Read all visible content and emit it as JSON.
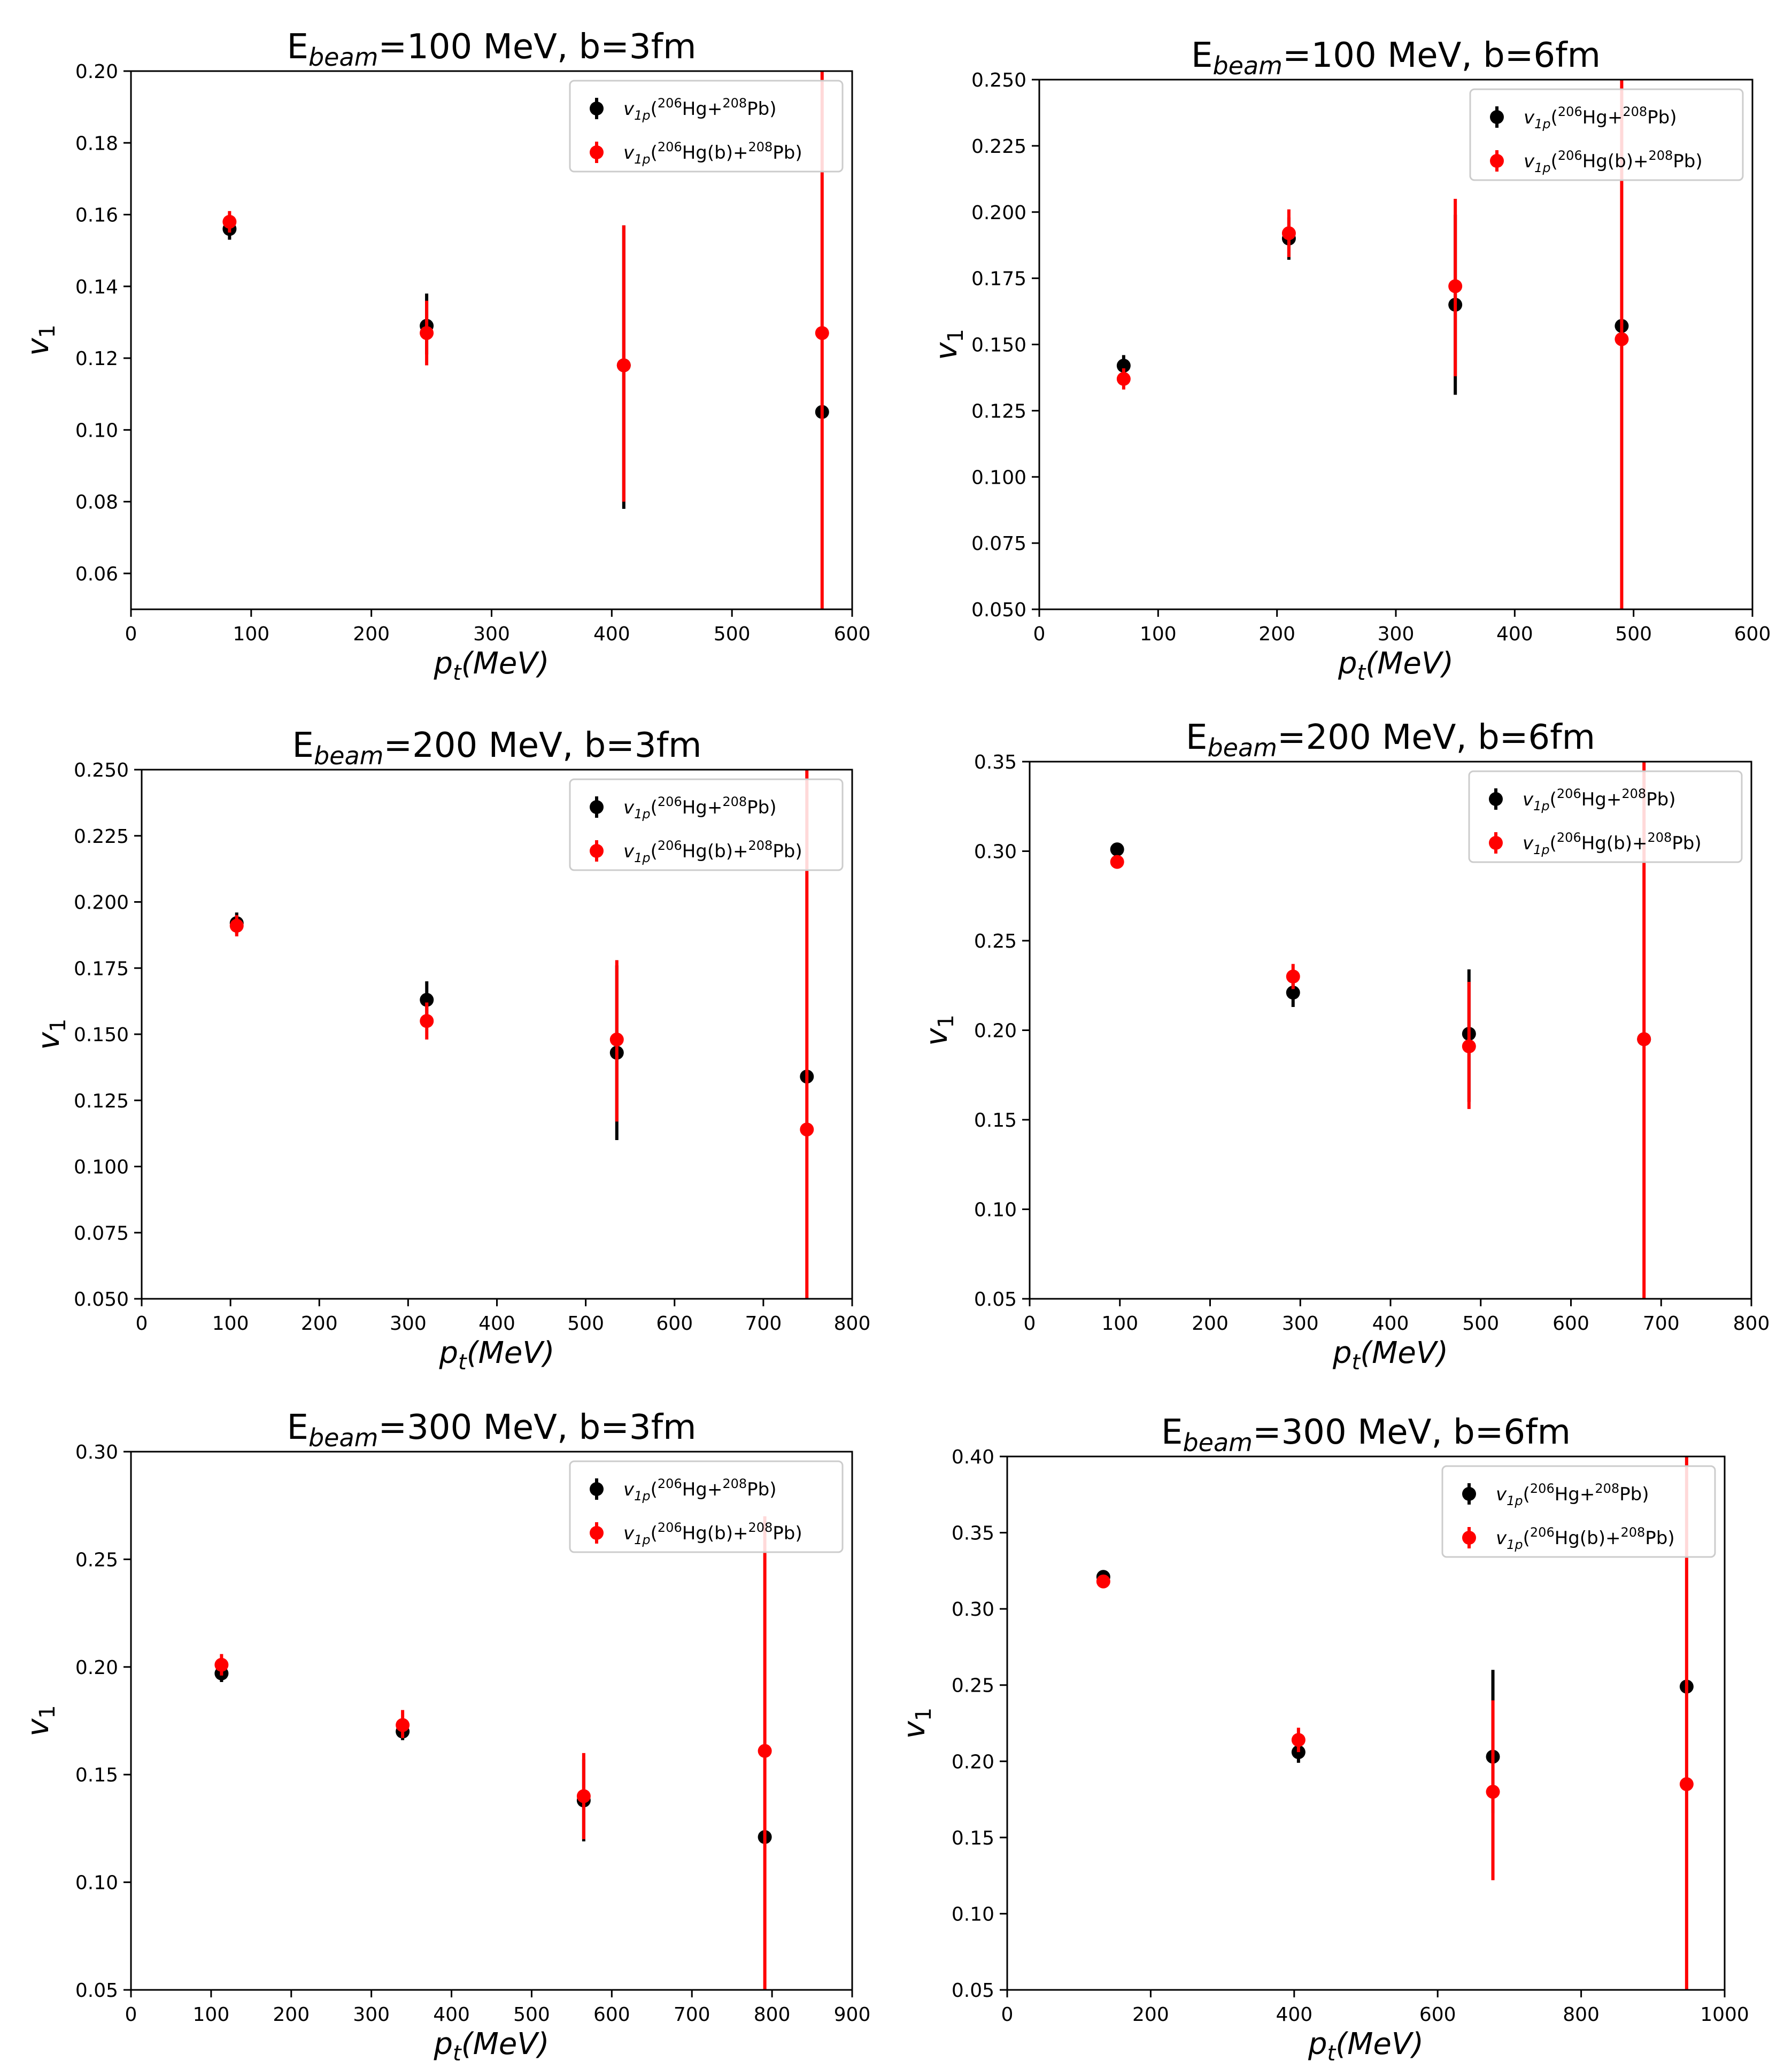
{
  "figure": {
    "colors": {
      "series_black": "#000000",
      "series_red": "#ff0000",
      "axis": "#000000",
      "legend_border": "#cccccc"
    }
  },
  "chart_data": [
    {
      "type": "scatter",
      "title": {
        "main": "E",
        "sub": "beam",
        "rest": "=100 MeV, b=3fm"
      },
      "xlabel": {
        "main": "p",
        "sub": "t",
        "rest": "(MeV)"
      },
      "ylabel": {
        "main": "v",
        "sub": "1"
      },
      "xlim": [
        0,
        600
      ],
      "ylim": [
        0.05,
        0.2
      ],
      "xticks": [
        0,
        100,
        200,
        300,
        400,
        500,
        600
      ],
      "xtick_labels": [
        "0",
        "100",
        "200",
        "300",
        "400",
        "500",
        "600"
      ],
      "yticks": [
        0.06,
        0.08,
        0.1,
        0.12,
        0.14,
        0.16,
        0.18,
        0.2
      ],
      "ytick_labels": [
        "0.06",
        "0.08",
        "0.10",
        "0.12",
        "0.14",
        "0.16",
        "0.18",
        "0.20"
      ],
      "legend_position": "top-right",
      "series": [
        {
          "name": "v1p(206Hg+208Pb)",
          "legend_label": "v1p(206Hg+208Pb)",
          "color": "#000000",
          "x": [
            82,
            246,
            410,
            575
          ],
          "y": [
            0.156,
            0.129,
            0.118,
            0.105
          ],
          "err_low": [
            0.153,
            0.121,
            0.078,
            0.105
          ],
          "err_high": [
            0.159,
            0.138,
            0.157,
            0.105
          ]
        },
        {
          "name": "v1p(206Hg(b)+208Pb)",
          "legend_label": "v1p(206Hg(b)+208Pb)",
          "color": "#ff0000",
          "x": [
            82,
            246,
            410,
            575
          ],
          "y": [
            0.158,
            0.127,
            0.118,
            0.127
          ],
          "err_low": [
            0.155,
            0.118,
            0.08,
            0.05
          ],
          "err_high": [
            0.161,
            0.136,
            0.157,
            0.2
          ]
        }
      ]
    },
    {
      "type": "scatter",
      "title": {
        "main": "E",
        "sub": "beam",
        "rest": "=100 MeV, b=6fm"
      },
      "xlabel": {
        "main": "p",
        "sub": "t",
        "rest": "(MeV)"
      },
      "ylabel": {
        "main": "v",
        "sub": "1"
      },
      "xlim": [
        0,
        600
      ],
      "ylim": [
        0.05,
        0.25
      ],
      "xticks": [
        0,
        100,
        200,
        300,
        400,
        500,
        600
      ],
      "xtick_labels": [
        "0",
        "100",
        "200",
        "300",
        "400",
        "500",
        "600"
      ],
      "yticks": [
        0.05,
        0.075,
        0.1,
        0.125,
        0.15,
        0.175,
        0.2,
        0.225,
        0.25
      ],
      "ytick_labels": [
        "0.050",
        "0.075",
        "0.100",
        "0.125",
        "0.150",
        "0.175",
        "0.200",
        "0.225",
        "0.250"
      ],
      "legend_position": "top-right",
      "series": [
        {
          "name": "v1p(206Hg+208Pb)",
          "legend_label": "v1p(206Hg+208Pb)",
          "color": "#000000",
          "x": [
            71,
            210,
            350,
            490
          ],
          "y": [
            0.142,
            0.19,
            0.165,
            0.157
          ],
          "err_low": [
            0.138,
            0.182,
            0.131,
            0.157
          ],
          "err_high": [
            0.146,
            0.198,
            0.199,
            0.157
          ]
        },
        {
          "name": "v1p(206Hg(b)+208Pb)",
          "legend_label": "v1p(206Hg(b)+208Pb)",
          "color": "#ff0000",
          "x": [
            71,
            210,
            350,
            490
          ],
          "y": [
            0.137,
            0.192,
            0.172,
            0.152
          ],
          "err_low": [
            0.133,
            0.183,
            0.138,
            0.05
          ],
          "err_high": [
            0.141,
            0.201,
            0.205,
            0.25
          ]
        }
      ]
    },
    {
      "type": "scatter",
      "title": {
        "main": "E",
        "sub": "beam",
        "rest": "=200 MeV, b=3fm"
      },
      "xlabel": {
        "main": "p",
        "sub": "t",
        "rest": "(MeV)"
      },
      "ylabel": {
        "main": "v",
        "sub": "1"
      },
      "xlim": [
        0,
        800
      ],
      "ylim": [
        0.05,
        0.25
      ],
      "xticks": [
        0,
        100,
        200,
        300,
        400,
        500,
        600,
        700,
        800
      ],
      "xtick_labels": [
        "0",
        "100",
        "200",
        "300",
        "400",
        "500",
        "600",
        "700",
        "800"
      ],
      "yticks": [
        0.05,
        0.075,
        0.1,
        0.125,
        0.15,
        0.175,
        0.2,
        0.225,
        0.25
      ],
      "ytick_labels": [
        "0.050",
        "0.075",
        "0.100",
        "0.125",
        "0.150",
        "0.175",
        "0.200",
        "0.225",
        "0.250"
      ],
      "legend_position": "top-right",
      "series": [
        {
          "name": "v1p(206Hg+208Pb)",
          "legend_label": "v1p(206Hg+208Pb)",
          "color": "#000000",
          "x": [
            107,
            321,
            535,
            749
          ],
          "y": [
            0.192,
            0.163,
            0.143,
            0.134
          ],
          "err_low": [
            0.188,
            0.155,
            0.11,
            0.134
          ],
          "err_high": [
            0.196,
            0.17,
            0.176,
            0.134
          ]
        },
        {
          "name": "v1p(206Hg(b)+208Pb)",
          "legend_label": "v1p(206Hg(b)+208Pb)",
          "color": "#ff0000",
          "x": [
            107,
            321,
            535,
            749
          ],
          "y": [
            0.191,
            0.155,
            0.148,
            0.114
          ],
          "err_low": [
            0.187,
            0.148,
            0.117,
            0.05
          ],
          "err_high": [
            0.195,
            0.162,
            0.178,
            0.25
          ]
        }
      ]
    },
    {
      "type": "scatter",
      "title": {
        "main": "E",
        "sub": "beam",
        "rest": "=200 MeV, b=6fm"
      },
      "xlabel": {
        "main": "p",
        "sub": "t",
        "rest": "(MeV)"
      },
      "ylabel": {
        "main": "v",
        "sub": "1"
      },
      "xlim": [
        0,
        800
      ],
      "ylim": [
        0.05,
        0.35
      ],
      "xticks": [
        0,
        100,
        200,
        300,
        400,
        500,
        600,
        700,
        800
      ],
      "xtick_labels": [
        "0",
        "100",
        "200",
        "300",
        "400",
        "500",
        "600",
        "700",
        "800"
      ],
      "yticks": [
        0.05,
        0.1,
        0.15,
        0.2,
        0.25,
        0.3,
        0.35
      ],
      "ytick_labels": [
        "0.05",
        "0.10",
        "0.15",
        "0.20",
        "0.25",
        "0.30",
        "0.35"
      ],
      "legend_position": "top-right",
      "series": [
        {
          "name": "v1p(206Hg+208Pb)",
          "legend_label": "v1p(206Hg+208Pb)",
          "color": "#000000",
          "x": [
            97,
            292,
            487,
            681
          ],
          "y": [
            0.301,
            0.221,
            0.198,
            0.195
          ],
          "err_low": [
            0.298,
            0.213,
            0.16,
            0.195
          ],
          "err_high": [
            0.304,
            0.228,
            0.234,
            0.195
          ]
        },
        {
          "name": "v1p(206Hg(b)+208Pb)",
          "legend_label": "v1p(206Hg(b)+208Pb)",
          "color": "#ff0000",
          "x": [
            97,
            292,
            487,
            681
          ],
          "y": [
            0.294,
            0.23,
            0.191,
            0.195
          ],
          "err_low": [
            0.291,
            0.223,
            0.156,
            0.05
          ],
          "err_high": [
            0.297,
            0.237,
            0.227,
            0.35
          ]
        }
      ]
    },
    {
      "type": "scatter",
      "title": {
        "main": "E",
        "sub": "beam",
        "rest": "=300 MeV, b=3fm"
      },
      "xlabel": {
        "main": "p",
        "sub": "t",
        "rest": "(MeV)"
      },
      "ylabel": {
        "main": "v",
        "sub": "1"
      },
      "xlim": [
        0,
        900
      ],
      "ylim": [
        0.05,
        0.3
      ],
      "xticks": [
        0,
        100,
        200,
        300,
        400,
        500,
        600,
        700,
        800,
        900
      ],
      "xtick_labels": [
        "0",
        "100",
        "200",
        "300",
        "400",
        "500",
        "600",
        "700",
        "800",
        "900"
      ],
      "yticks": [
        0.05,
        0.1,
        0.15,
        0.2,
        0.25,
        0.3
      ],
      "ytick_labels": [
        "0.05",
        "0.10",
        "0.15",
        "0.20",
        "0.25",
        "0.30"
      ],
      "legend_position": "top-right",
      "series": [
        {
          "name": "v1p(206Hg+208Pb)",
          "legend_label": "v1p(206Hg+208Pb)",
          "color": "#000000",
          "x": [
            113,
            339,
            565,
            791
          ],
          "y": [
            0.197,
            0.17,
            0.138,
            0.121
          ],
          "err_low": [
            0.193,
            0.166,
            0.119,
            0.121
          ],
          "err_high": [
            0.201,
            0.174,
            0.157,
            0.121
          ]
        },
        {
          "name": "v1p(206Hg(b)+208Pb)",
          "legend_label": "v1p(206Hg(b)+208Pb)",
          "color": "#ff0000",
          "x": [
            113,
            339,
            565,
            791
          ],
          "y": [
            0.201,
            0.173,
            0.14,
            0.161
          ],
          "err_low": [
            0.196,
            0.167,
            0.12,
            0.05
          ],
          "err_high": [
            0.206,
            0.18,
            0.16,
            0.27
          ]
        }
      ]
    },
    {
      "type": "scatter",
      "title": {
        "main": "E",
        "sub": "beam",
        "rest": "=300 MeV, b=6fm"
      },
      "xlabel": {
        "main": "p",
        "sub": "t",
        "rest": "(MeV)"
      },
      "ylabel": {
        "main": "v",
        "sub": "1"
      },
      "xlim": [
        0,
        1000
      ],
      "ylim": [
        0.05,
        0.4
      ],
      "xticks": [
        0,
        200,
        400,
        600,
        800,
        1000
      ],
      "xtick_labels": [
        "0",
        "200",
        "400",
        "600",
        "800",
        "1000"
      ],
      "yticks": [
        0.05,
        0.1,
        0.15,
        0.2,
        0.25,
        0.3,
        0.35,
        0.4
      ],
      "ytick_labels": [
        "0.05",
        "0.10",
        "0.15",
        "0.20",
        "0.25",
        "0.30",
        "0.35",
        "0.40"
      ],
      "legend_position": "top-right",
      "series": [
        {
          "name": "v1p(206Hg+208Pb)",
          "legend_label": "v1p(206Hg+208Pb)",
          "color": "#000000",
          "x": [
            134,
            406,
            677,
            947
          ],
          "y": [
            0.321,
            0.206,
            0.203,
            0.249
          ],
          "err_low": [
            0.318,
            0.199,
            0.166,
            0.249
          ],
          "err_high": [
            0.324,
            0.213,
            0.26,
            0.249
          ]
        },
        {
          "name": "v1p(206Hg(b)+208Pb)",
          "legend_label": "v1p(206Hg(b)+208Pb)",
          "color": "#ff0000",
          "x": [
            134,
            406,
            677,
            947
          ],
          "y": [
            0.318,
            0.214,
            0.18,
            0.185
          ],
          "err_low": [
            0.315,
            0.206,
            0.122,
            0.05
          ],
          "err_high": [
            0.321,
            0.222,
            0.24,
            0.4
          ]
        }
      ]
    }
  ]
}
